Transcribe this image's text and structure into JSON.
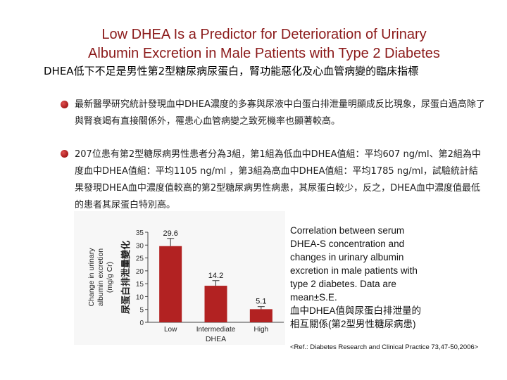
{
  "header": {
    "title_line1": "Low DHEA Is a Predictor for Deterioration of  Urinary",
    "title_line2": "Albumin Excretion in Male Patients with Type 2 Diabetes",
    "subtitle": "DHEA低下不足是男性第2型糖尿病尿蛋白，腎功能惡化及心血管病變的臨床指標"
  },
  "bullets": [
    "最新醫學研究統計發現血中DHEA濃度的多寡與尿液中白蛋白排泄量明顯成反比現象，尿蛋白過高除了與腎衰竭有直接關係外，罹患心血管病變之致死機率也顯著較高。",
    "207位患有第2型糖尿病男性患者分為3組，第1組為低血中DHEA值組：平均607 ng/ml、第2組為中度血中DHEA值組：平均1105 ng/ml ，第3組為高血中DHEA值組：平均1785 ng/ml，試驗統計結果發現DHEA血中濃度值較高的第2型糖尿病男性病患，其尿蛋白較少，反之，DHEA血中濃度值最低的患者其尿蛋白特別高。"
  ],
  "caption": {
    "lines": [
      "Correlation between serum",
      "DHEA-S concentration and",
      "changes in urinary albumin",
      "excretion in male patients with",
      "type 2 diabetes. Data are",
      "mean±S.E.",
      "血中DHEA值與尿蛋白排泄量的",
      "相互關係(第2型男性糖尿病患)"
    ],
    "reference": "<Ref.: Diabetes Research and Clinical Practice 73,47-50,2006>"
  },
  "colors": {
    "title": "#8b1a1a",
    "bar": "#b22222",
    "bullet": "#b22222"
  },
  "chart_data": {
    "type": "bar",
    "categories": [
      "Low",
      "Intermediate",
      "High"
    ],
    "values": [
      29.6,
      14.2,
      5.1
    ],
    "value_labels": [
      "29.6",
      "14.2",
      "5.1"
    ],
    "errors": [
      3,
      2,
      1
    ],
    "xlabel": "DHEA",
    "ylabel_lines": [
      "Change in urinary",
      "albumin excretion",
      "(mg/g Cr)"
    ],
    "ylabel_chinese": "尿蛋白排泄量變化",
    "ylim": [
      0,
      35
    ],
    "yticks": [
      0,
      5,
      10,
      15,
      20,
      25,
      30,
      35
    ],
    "grid": false
  }
}
